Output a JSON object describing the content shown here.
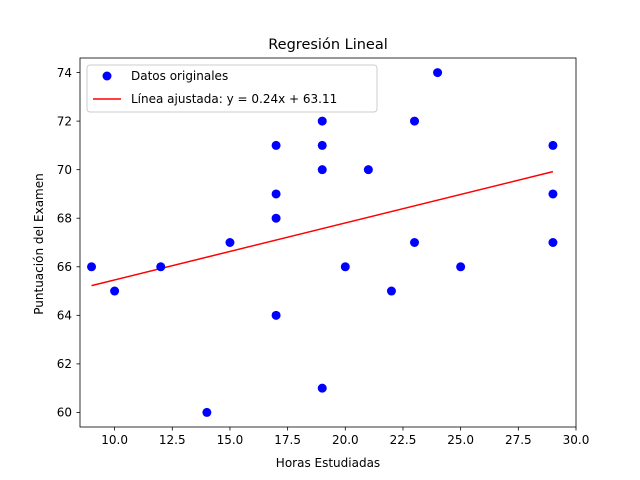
{
  "chart_data": {
    "type": "scatter",
    "title": "Regresión Lineal",
    "xlabel": "Horas Estudiadas",
    "ylabel": "Puntuación del Examen",
    "xlim": [
      8.5,
      30.0
    ],
    "ylim": [
      59.4,
      74.6
    ],
    "x_ticks": [
      "10.0",
      "12.5",
      "15.0",
      "17.5",
      "20.0",
      "22.5",
      "25.0",
      "27.5",
      "30.0"
    ],
    "y_ticks": [
      "60",
      "62",
      "64",
      "66",
      "68",
      "70",
      "72",
      "74"
    ],
    "grid": false,
    "legend_position": "top-left",
    "series": [
      {
        "name": "Datos originales",
        "kind": "scatter",
        "color": "#0000ff",
        "points": [
          [
            9,
            66
          ],
          [
            10,
            65
          ],
          [
            12,
            66
          ],
          [
            14,
            60
          ],
          [
            15,
            67
          ],
          [
            17,
            71
          ],
          [
            17,
            69
          ],
          [
            17,
            68
          ],
          [
            17,
            64
          ],
          [
            19,
            72
          ],
          [
            19,
            71
          ],
          [
            19,
            70
          ],
          [
            19,
            61
          ],
          [
            20,
            66
          ],
          [
            21,
            70
          ],
          [
            22,
            65
          ],
          [
            23,
            72
          ],
          [
            23,
            67
          ],
          [
            24,
            74
          ],
          [
            25,
            66
          ],
          [
            29,
            71
          ],
          [
            29,
            69
          ],
          [
            29,
            67
          ]
        ]
      },
      {
        "name": "Línea ajustada: y = 0.24x + 63.11",
        "kind": "line",
        "color": "#ff0000",
        "x_range": [
          9,
          29
        ],
        "slope": 0.2348,
        "intercept": 63.11
      }
    ]
  }
}
